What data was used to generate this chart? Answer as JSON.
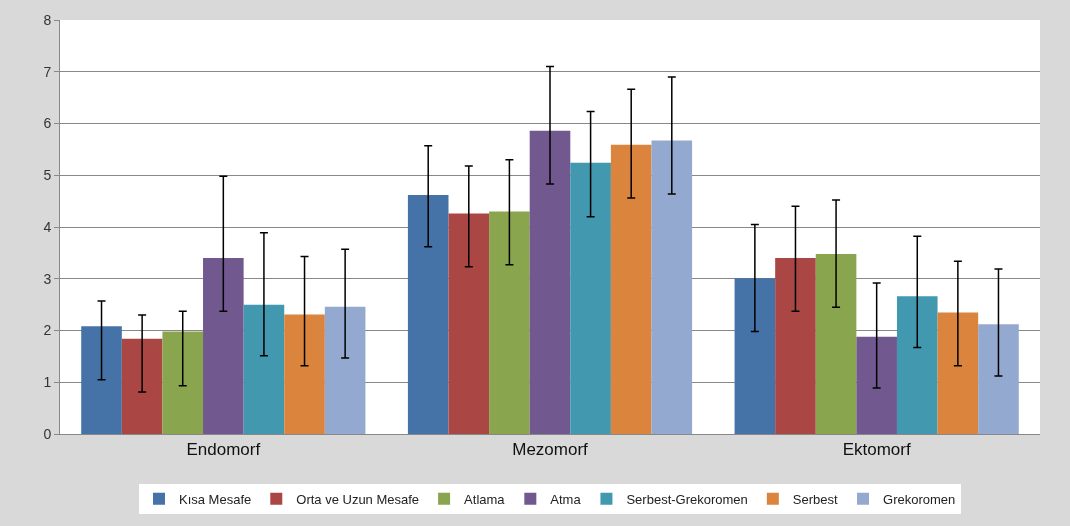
{
  "chart_data": {
    "type": "bar",
    "categories": [
      "Endomorf",
      "Mezomorf",
      "Ektomorf"
    ],
    "series": [
      {
        "name": "Kısa Mesafe",
        "color": "#4572a7",
        "values": [
          2.08,
          4.62,
          3.01
        ],
        "errors": [
          [
            1.05,
            2.57
          ],
          [
            3.62,
            5.57
          ],
          [
            1.98,
            4.05
          ]
        ]
      },
      {
        "name": "Orta ve Uzun Mesafe",
        "color": "#aa4643",
        "values": [
          1.84,
          4.26,
          3.4
        ],
        "errors": [
          [
            0.81,
            2.3
          ],
          [
            3.23,
            5.18
          ],
          [
            2.37,
            4.4
          ]
        ]
      },
      {
        "name": "Atlama",
        "color": "#89a54e",
        "values": [
          1.98,
          4.3,
          3.48
        ],
        "errors": [
          [
            0.93,
            2.37
          ],
          [
            3.27,
            5.3
          ],
          [
            2.45,
            4.52
          ]
        ]
      },
      {
        "name": "Atma",
        "color": "#71588f",
        "values": [
          3.4,
          5.86,
          1.88
        ],
        "errors": [
          [
            2.37,
            4.98
          ],
          [
            4.83,
            7.1
          ],
          [
            0.89,
            2.92
          ]
        ]
      },
      {
        "name": "Serbest-Grekoromen",
        "color": "#4198af",
        "values": [
          2.5,
          5.24,
          2.66
        ],
        "errors": [
          [
            1.51,
            3.89
          ],
          [
            4.2,
            6.23
          ],
          [
            1.67,
            3.82
          ]
        ]
      },
      {
        "name": "Serbest",
        "color": "#db843d",
        "values": [
          2.31,
          5.59,
          2.35
        ],
        "errors": [
          [
            1.32,
            3.43
          ],
          [
            4.56,
            6.66
          ],
          [
            1.32,
            3.34
          ]
        ]
      },
      {
        "name": "Grekoromen",
        "color": "#93a9cf",
        "values": [
          2.46,
          5.67,
          2.12
        ],
        "errors": [
          [
            1.47,
            3.57
          ],
          [
            4.64,
            6.9
          ],
          [
            1.12,
            3.19
          ]
        ]
      }
    ],
    "ylim": [
      0,
      8
    ],
    "yticks": [
      0,
      1,
      2,
      3,
      4,
      5,
      6,
      7,
      8
    ],
    "grid": "y",
    "legend": "bottom"
  }
}
